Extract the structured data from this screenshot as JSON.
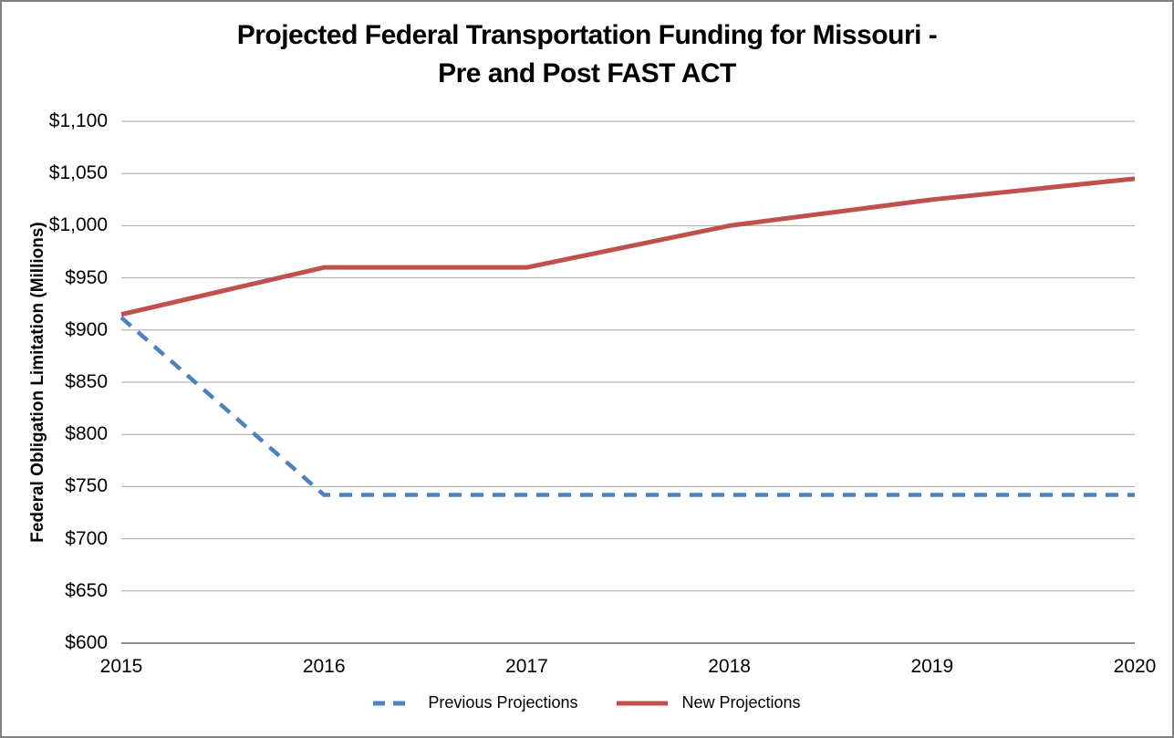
{
  "chart": {
    "title_line1": "Projected Federal Transportation Funding for Missouri -",
    "title_line2": "Pre and Post FAST ACT"
  },
  "chart_data": {
    "type": "line",
    "title": "Projected Federal Transportation Funding for Missouri - Pre and Post FAST ACT",
    "xlabel": "",
    "ylabel": "Federal Obligation Limitation (Millions)",
    "x": [
      2015,
      2016,
      2017,
      2018,
      2019,
      2020
    ],
    "xtick_labels": [
      "2015",
      "2016",
      "2017",
      "2018",
      "2019",
      "2020"
    ],
    "ylim": [
      600,
      1100
    ],
    "ytick_step": 50,
    "ytick_labels": [
      "$600",
      "$650",
      "$700",
      "$750",
      "$800",
      "$850",
      "$900",
      "$950",
      "$1,000",
      "$1,050",
      "$1,100"
    ],
    "grid": true,
    "legend_position": "bottom",
    "series": [
      {
        "name": "Previous Projections",
        "color": "#4F81BD",
        "style": "dashed",
        "values": [
          912,
          742,
          742,
          742,
          742,
          742
        ]
      },
      {
        "name": "New Projections",
        "color": "#C0504D",
        "style": "solid",
        "values": [
          915,
          960,
          960,
          1000,
          1025,
          1045
        ]
      }
    ]
  },
  "ui": {
    "colors": {
      "background": "#FFFFFF",
      "border": "#808080",
      "gridline": "#A6A6A6",
      "axis": "#808080",
      "text": "#000000"
    }
  }
}
